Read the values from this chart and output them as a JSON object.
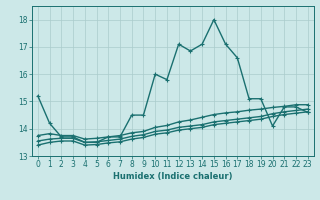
{
  "title": "",
  "xlabel": "Humidex (Indice chaleur)",
  "xlim": [
    -0.5,
    23.5
  ],
  "ylim": [
    13.0,
    18.5
  ],
  "yticks": [
    13,
    14,
    15,
    16,
    17,
    18
  ],
  "xticks": [
    0,
    1,
    2,
    3,
    4,
    5,
    6,
    7,
    8,
    9,
    10,
    11,
    12,
    13,
    14,
    15,
    16,
    17,
    18,
    19,
    20,
    21,
    22,
    23
  ],
  "bg_color": "#cce8e8",
  "grid_color": "#aacccc",
  "line_color": "#1a7070",
  "line_width": 1.0,
  "marker_size": 2.5,
  "series": [
    {
      "x": [
        0,
        1,
        2,
        3,
        4,
        5,
        6,
        7,
        8,
        9,
        10,
        11,
        12,
        13,
        14,
        15,
        16,
        17,
        18,
        19,
        20,
        21,
        22,
        23
      ],
      "y": [
        15.2,
        14.2,
        13.7,
        13.7,
        13.5,
        13.5,
        13.7,
        13.7,
        14.5,
        14.5,
        16.0,
        15.8,
        17.1,
        16.85,
        17.1,
        18.0,
        17.1,
        16.6,
        15.1,
        15.1,
        14.1,
        14.8,
        14.8,
        14.6
      ]
    },
    {
      "x": [
        0,
        1,
        2,
        3,
        4,
        5,
        6,
        7,
        8,
        9,
        10,
        11,
        12,
        13,
        14,
        15,
        16,
        17,
        18,
        19,
        20,
        21,
        22,
        23
      ],
      "y": [
        13.75,
        13.82,
        13.75,
        13.75,
        13.62,
        13.65,
        13.7,
        13.75,
        13.85,
        13.9,
        14.05,
        14.12,
        14.25,
        14.32,
        14.42,
        14.52,
        14.58,
        14.62,
        14.68,
        14.72,
        14.78,
        14.82,
        14.88,
        14.88
      ]
    },
    {
      "x": [
        0,
        1,
        2,
        3,
        4,
        5,
        6,
        7,
        8,
        9,
        10,
        11,
        12,
        13,
        14,
        15,
        16,
        17,
        18,
        19,
        20,
        21,
        22,
        23
      ],
      "y": [
        13.55,
        13.62,
        13.65,
        13.65,
        13.5,
        13.52,
        13.57,
        13.62,
        13.72,
        13.78,
        13.9,
        13.95,
        14.05,
        14.1,
        14.15,
        14.25,
        14.3,
        14.35,
        14.4,
        14.45,
        14.55,
        14.62,
        14.67,
        14.72
      ]
    },
    {
      "x": [
        0,
        1,
        2,
        3,
        4,
        5,
        6,
        7,
        8,
        9,
        10,
        11,
        12,
        13,
        14,
        15,
        16,
        17,
        18,
        19,
        20,
        21,
        22,
        23
      ],
      "y": [
        13.4,
        13.5,
        13.55,
        13.55,
        13.4,
        13.42,
        13.48,
        13.52,
        13.62,
        13.68,
        13.8,
        13.85,
        13.95,
        14.0,
        14.05,
        14.15,
        14.2,
        14.25,
        14.3,
        14.35,
        14.45,
        14.52,
        14.57,
        14.62
      ]
    }
  ]
}
